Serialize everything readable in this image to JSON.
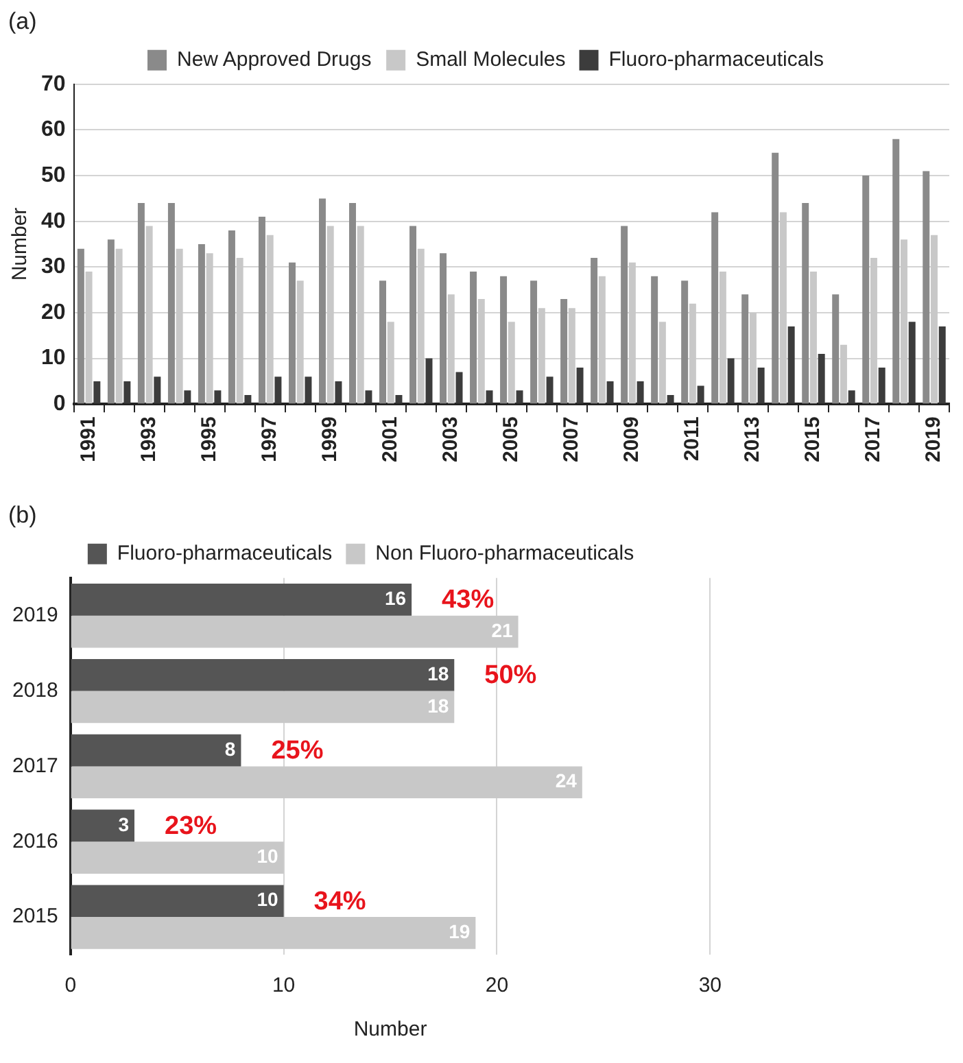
{
  "chart_data": [
    {
      "type": "bar",
      "title": "(a)",
      "ylabel": "Number",
      "categories": [
        "1991",
        null,
        "1993",
        null,
        "1995",
        null,
        "1997",
        null,
        "1999",
        null,
        "2001",
        null,
        "2003",
        null,
        "2005",
        null,
        "2007",
        null,
        "2009",
        null,
        "2011",
        null,
        "2013",
        null,
        "2015",
        null,
        "2017",
        null,
        "2019"
      ],
      "series": [
        {
          "name": "New Approved Drugs",
          "color": "#8a8a8a",
          "values": [
            34,
            36,
            44,
            44,
            35,
            38,
            41,
            31,
            45,
            44,
            27,
            39,
            33,
            29,
            28,
            27,
            23,
            32,
            39,
            28,
            27,
            42,
            24,
            55,
            44,
            24,
            50,
            58,
            51
          ]
        },
        {
          "name": "Small Molecules",
          "color": "#c8c8c8",
          "values": [
            29,
            34,
            39,
            34,
            33,
            32,
            37,
            27,
            39,
            39,
            18,
            34,
            24,
            23,
            18,
            21,
            21,
            28,
            31,
            18,
            22,
            29,
            20,
            42,
            29,
            13,
            32,
            36,
            37
          ]
        },
        {
          "name": "Fluoro-pharmaceuticals",
          "color": "#3c3c3c",
          "values": [
            5,
            5,
            6,
            3,
            3,
            2,
            6,
            6,
            5,
            3,
            2,
            10,
            7,
            3,
            3,
            6,
            8,
            5,
            5,
            2,
            4,
            10,
            8,
            17,
            11,
            3,
            8,
            18,
            17
          ]
        }
      ],
      "ylim": [
        0,
        70
      ],
      "yticks": [
        0,
        10,
        20,
        30,
        40,
        50,
        60,
        70
      ],
      "grid": "y",
      "legend": "top"
    },
    {
      "type": "bar",
      "orientation": "horizontal",
      "title": "(b)",
      "xlabel": "Number",
      "categories": [
        "2019",
        "2018",
        "2017",
        "2016",
        "2015"
      ],
      "series": [
        {
          "name": "Fluoro-pharmaceuticals",
          "color": "#555555",
          "values": [
            16,
            18,
            8,
            3,
            10
          ]
        },
        {
          "name": "Non Fluoro-pharmaceuticals",
          "color": "#c8c8c8",
          "values": [
            21,
            18,
            24,
            10,
            19
          ]
        }
      ],
      "xlim": [
        0,
        30
      ],
      "xticks": [
        0,
        10,
        20,
        30
      ],
      "grid": "x",
      "legend": "top",
      "data_labels": true,
      "annotations": [
        {
          "text": "43%",
          "x": 16,
          "y": "2019"
        },
        {
          "text": "50%",
          "x": 18,
          "y": "2018"
        },
        {
          "text": "25%",
          "x": 8,
          "y": "2017"
        },
        {
          "text": "23%",
          "x": 3,
          "y": "2016"
        },
        {
          "text": "34%",
          "x": 10,
          "y": "2015"
        }
      ]
    }
  ]
}
